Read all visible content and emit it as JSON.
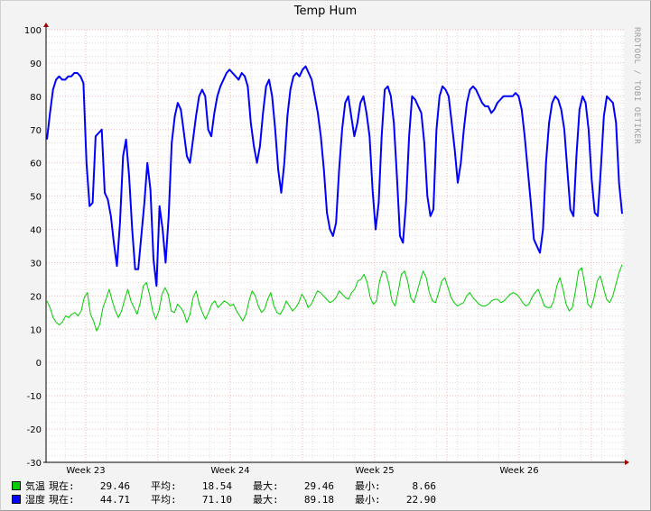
{
  "chart_data": {
    "type": "line",
    "title": "Temp Hum",
    "credit": "RRDTOOL / TOBI OETIKER",
    "ylim": [
      -30,
      100
    ],
    "yticks": [
      -30,
      -20,
      -10,
      0,
      10,
      20,
      30,
      40,
      50,
      60,
      70,
      80,
      90,
      100
    ],
    "x_major_ticks": [
      "Week 23",
      "Week 24",
      "Week 25",
      "Week 26"
    ],
    "grid": true,
    "legend_position": "bottom-left",
    "series": [
      {
        "name": "気温",
        "color": "#00cc00",
        "stats": {
          "current": "29.46",
          "average": "18.54",
          "maximum": "29.46",
          "minimum": "8.66"
        },
        "values": [
          18.5,
          16.5,
          13.5,
          12,
          11.3,
          12.2,
          14,
          13.5,
          14.5,
          15,
          14,
          15.5,
          19.5,
          21,
          14.5,
          12.5,
          9.5,
          11.5,
          16.5,
          19,
          22,
          18.5,
          15.5,
          13.5,
          15.5,
          19,
          22,
          18.5,
          16.5,
          14.5,
          18,
          23,
          24,
          20.5,
          15.5,
          13,
          15.5,
          20.5,
          22.5,
          20.5,
          15.5,
          15,
          17.5,
          16.5,
          15,
          12,
          14.5,
          19.5,
          21.5,
          17.5,
          15,
          13,
          15,
          17.5,
          18.5,
          16.5,
          17.5,
          18.5,
          18,
          17,
          17.5,
          15.5,
          14,
          12.5,
          14.5,
          18.5,
          21.5,
          20,
          17,
          15,
          16,
          19,
          21,
          17,
          15,
          14.5,
          16,
          18.5,
          17,
          15.5,
          16.5,
          18,
          20.5,
          19,
          16.5,
          17.5,
          19.5,
          21.5,
          21,
          20,
          19,
          18,
          18.5,
          19.5,
          21.5,
          20.5,
          19.5,
          19,
          21,
          22,
          24.5,
          25,
          26.5,
          24,
          19.5,
          17.5,
          18.5,
          24.5,
          27.5,
          27,
          23.5,
          18.5,
          17,
          21.5,
          26.5,
          27.5,
          24.5,
          19.5,
          18,
          21,
          24.5,
          27.5,
          25.5,
          21,
          18.5,
          18,
          21,
          24.5,
          25.5,
          22.5,
          19.5,
          18,
          17,
          17.5,
          18,
          20,
          21,
          19.5,
          18.5,
          17.5,
          17,
          17,
          17.5,
          18.5,
          19,
          19,
          18,
          18.5,
          19.5,
          20.5,
          21,
          20.5,
          19.5,
          18,
          17,
          17.5,
          19.5,
          21,
          22,
          19.5,
          17,
          16.5,
          16.5,
          18.5,
          23,
          25.5,
          22,
          17.5,
          15.5,
          16.5,
          21.5,
          27.5,
          28.5,
          23.5,
          17.5,
          16.5,
          19.5,
          24.5,
          26,
          22.5,
          19,
          18,
          20,
          23.5,
          27,
          29.46
        ]
      },
      {
        "name": "湿度",
        "color": "#0000ff",
        "stats": {
          "current": "44.71",
          "average": "71.10",
          "maximum": "89.18",
          "minimum": "22.90"
        },
        "values": [
          67,
          75,
          82,
          85,
          86,
          85,
          85,
          86,
          86,
          87,
          87,
          86,
          84,
          60,
          47,
          48,
          68,
          69,
          70,
          51,
          49,
          44,
          36,
          29,
          42,
          62,
          67,
          56,
          40,
          28,
          28,
          38,
          48,
          60,
          52,
          31,
          23,
          47,
          40,
          30,
          44,
          66,
          74,
          78,
          76,
          69,
          62,
          60,
          67,
          74,
          80,
          82,
          80,
          70,
          68,
          75,
          80,
          83,
          85,
          87,
          88,
          87,
          86,
          85,
          87,
          86,
          83,
          72,
          65,
          60,
          65,
          75,
          83,
          85,
          80,
          70,
          58,
          51,
          60,
          74,
          82,
          86,
          87,
          86,
          88,
          89,
          87,
          85,
          80,
          75,
          68,
          58,
          45,
          40,
          38,
          42,
          58,
          70,
          78,
          80,
          74,
          68,
          72,
          78,
          80,
          75,
          68,
          52,
          40,
          48,
          68,
          82,
          83,
          80,
          72,
          56,
          38,
          36,
          48,
          68,
          80,
          79,
          77,
          75,
          66,
          50,
          44,
          46,
          70,
          80,
          83,
          82,
          80,
          72,
          64,
          54,
          60,
          70,
          78,
          82,
          83,
          82,
          80,
          78,
          77,
          77,
          75,
          76,
          78,
          79,
          80,
          80,
          80,
          80,
          81,
          80,
          76,
          68,
          58,
          48,
          37,
          35,
          33,
          40,
          60,
          72,
          78,
          80,
          79,
          76,
          70,
          58,
          46,
          44,
          62,
          76,
          80,
          78,
          70,
          55,
          45,
          44,
          58,
          74,
          80,
          79,
          78,
          72,
          54,
          44.71
        ]
      }
    ]
  },
  "legend_labels": {
    "current": "現在:",
    "average": "平均:",
    "maximum": "最大:",
    "minimum": "最小:"
  }
}
